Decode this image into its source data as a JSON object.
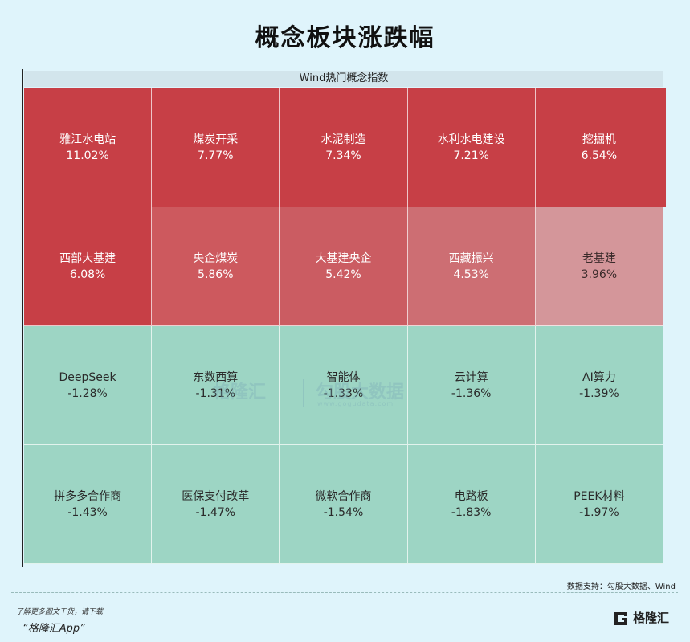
{
  "title": "概念板块涨跌幅",
  "chart_data": {
    "type": "heatmap",
    "subtitle": "Wind热门概念指数",
    "columns": 5,
    "unit": "%",
    "cells": [
      {
        "name": "雅江水电站",
        "value": 11.02,
        "label": "11.02%",
        "color": "#c73f46"
      },
      {
        "name": "煤炭开采",
        "value": 7.77,
        "label": "7.77%",
        "color": "#c73f46"
      },
      {
        "name": "水泥制造",
        "value": 7.34,
        "label": "7.34%",
        "color": "#c73f46"
      },
      {
        "name": "水利水电建设",
        "value": 7.21,
        "label": "7.21%",
        "color": "#c73f46"
      },
      {
        "name": "挖掘机",
        "value": 6.54,
        "label": "6.54%",
        "color": "#c73f46"
      },
      {
        "name": "西部大基建",
        "value": 6.08,
        "label": "6.08%",
        "color": "#c73f46"
      },
      {
        "name": "央企煤炭",
        "value": 5.86,
        "label": "5.86%",
        "color": "#cd595e"
      },
      {
        "name": "大基建央企",
        "value": 5.42,
        "label": "5.42%",
        "color": "#cb5c62"
      },
      {
        "name": "西藏振兴",
        "value": 4.53,
        "label": "4.53%",
        "color": "#cd6e73"
      },
      {
        "name": "老基建",
        "value": 3.96,
        "label": "3.96%",
        "color": "#d4969a"
      },
      {
        "name": "DeepSeek",
        "value": -1.28,
        "label": "-1.28%",
        "color": "#9dd5c4"
      },
      {
        "name": "东数西算",
        "value": -1.31,
        "label": "-1.31%",
        "color": "#9dd5c4"
      },
      {
        "name": "智能体",
        "value": -1.33,
        "label": "-1.33%",
        "color": "#9dd5c4"
      },
      {
        "name": "云计算",
        "value": -1.36,
        "label": "-1.36%",
        "color": "#9dd5c4"
      },
      {
        "name": "AI算力",
        "value": -1.39,
        "label": "-1.39%",
        "color": "#9dd5c4"
      },
      {
        "name": "拼多多合作商",
        "value": -1.43,
        "label": "-1.43%",
        "color": "#9dd5c4"
      },
      {
        "name": "医保支付改革",
        "value": -1.47,
        "label": "-1.47%",
        "color": "#9dd5c4"
      },
      {
        "name": "微软合作商",
        "value": -1.54,
        "label": "-1.54%",
        "color": "#9dd5c4"
      },
      {
        "name": "电路板",
        "value": -1.83,
        "label": "-1.83%",
        "color": "#9dd5c4"
      },
      {
        "name": "PEEK材料",
        "value": -1.97,
        "label": "-1.97%",
        "color": "#9dd5c4"
      }
    ]
  },
  "watermark": {
    "left": "格隆汇",
    "right": "勾股大数据",
    "url": "www.gogudata.com"
  },
  "source": "数据支持：勾股大数据、Wind",
  "footer": {
    "line1": "了解更多图文干货，请下载",
    "line2": "“格隆汇App”",
    "brand": "格隆汇"
  }
}
